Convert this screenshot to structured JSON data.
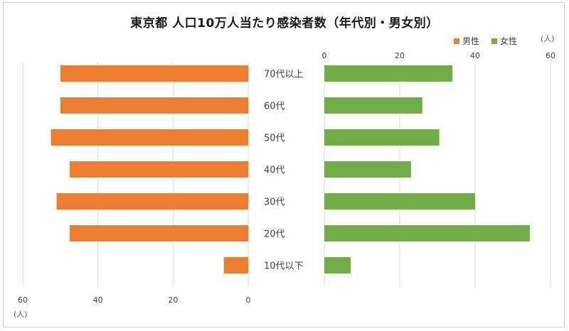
{
  "title": "東京都  人口10万人当たり感染者数（年代別・男女別）",
  "legend": {
    "male_label": "男性",
    "female_label": "女性"
  },
  "units": {
    "left": "(人)",
    "right": "(人)"
  },
  "colors": {
    "male": "#ED7D31",
    "female": "#70AD47",
    "grid": "#d9d9d9",
    "text": "#404040"
  },
  "chart_data": {
    "type": "bar",
    "orientation": "horizontal-butterfly",
    "title": "東京都  人口10万人当たり感染者数（年代別・男女別）",
    "categories": [
      "70代以上",
      "60代",
      "50代",
      "40代",
      "30代",
      "20代",
      "10代以下"
    ],
    "series": [
      {
        "name": "男性",
        "side": "left",
        "values": [
          50,
          50,
          52.5,
          47.5,
          51,
          47.5,
          6.5
        ]
      },
      {
        "name": "女性",
        "side": "right",
        "values": [
          34,
          26,
          30.5,
          23,
          40,
          54.5,
          7
        ]
      }
    ],
    "left_axis": {
      "ticks": [
        "60",
        "40",
        "20",
        "0"
      ],
      "range": [
        60,
        0
      ],
      "unit": "(人)",
      "position": "bottom"
    },
    "right_axis": {
      "ticks": [
        "0",
        "20",
        "40",
        "60"
      ],
      "range": [
        0,
        60
      ],
      "unit": "(人)",
      "position": "top"
    },
    "grid": true,
    "legend_position": "top-right"
  }
}
